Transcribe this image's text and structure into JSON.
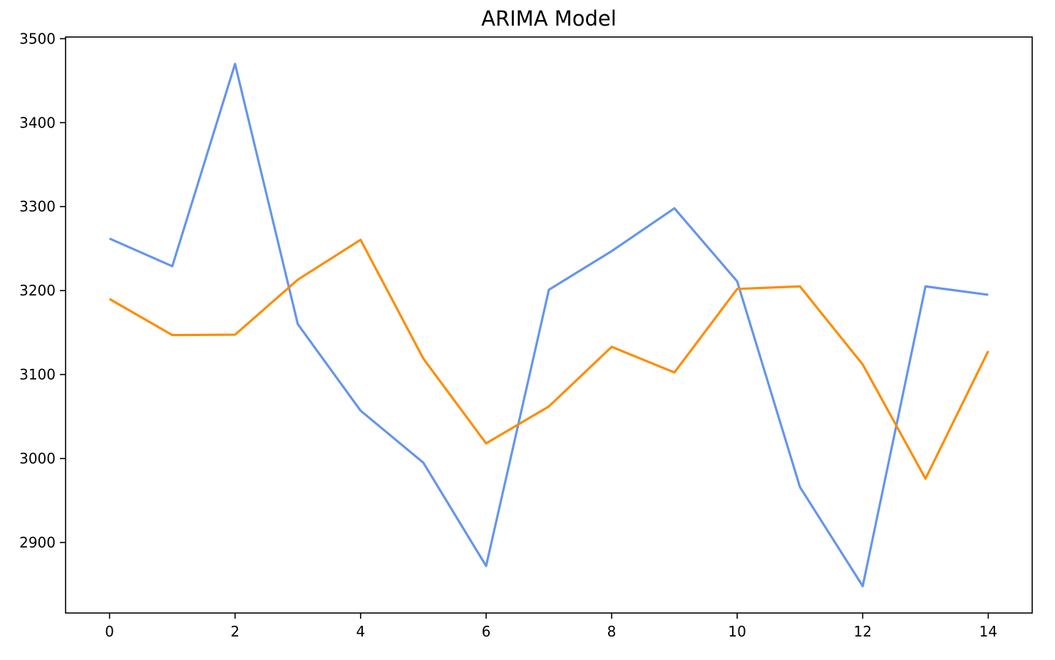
{
  "chart_data": {
    "type": "line",
    "title": "ARIMA Model",
    "xlabel": "",
    "ylabel": "",
    "x": [
      0,
      1,
      2,
      3,
      4,
      5,
      6,
      7,
      8,
      9,
      10,
      11,
      12,
      13,
      14
    ],
    "series": [
      {
        "color": "#6495ED",
        "values": [
          3262,
          3229,
          3470,
          3160,
          3057,
          2995,
          2872,
          3201,
          3247,
          3298,
          3211,
          2966,
          2848,
          3205,
          3195
        ]
      },
      {
        "color": "#FF8C00",
        "values": [
          3190,
          3147,
          3147.5,
          3213,
          3260.5,
          3119,
          3018,
          3062,
          3133,
          3102.5,
          3202,
          3205,
          3112,
          2976,
          3128
        ]
      }
    ],
    "xlim": [
      -0.7,
      14.7
    ],
    "ylim": [
      2816,
      3502
    ],
    "xticks": [
      0,
      2,
      4,
      6,
      8,
      10,
      12,
      14
    ],
    "xtick_labels": [
      "0",
      "2",
      "4",
      "6",
      "8",
      "10",
      "12",
      "14"
    ],
    "yticks": [
      2900,
      3000,
      3100,
      3200,
      3300,
      3400,
      3500
    ],
    "ytick_labels": [
      "2900",
      "3000",
      "3100",
      "3200",
      "3300",
      "3400",
      "3500"
    ],
    "grid": false,
    "legend": "none"
  }
}
